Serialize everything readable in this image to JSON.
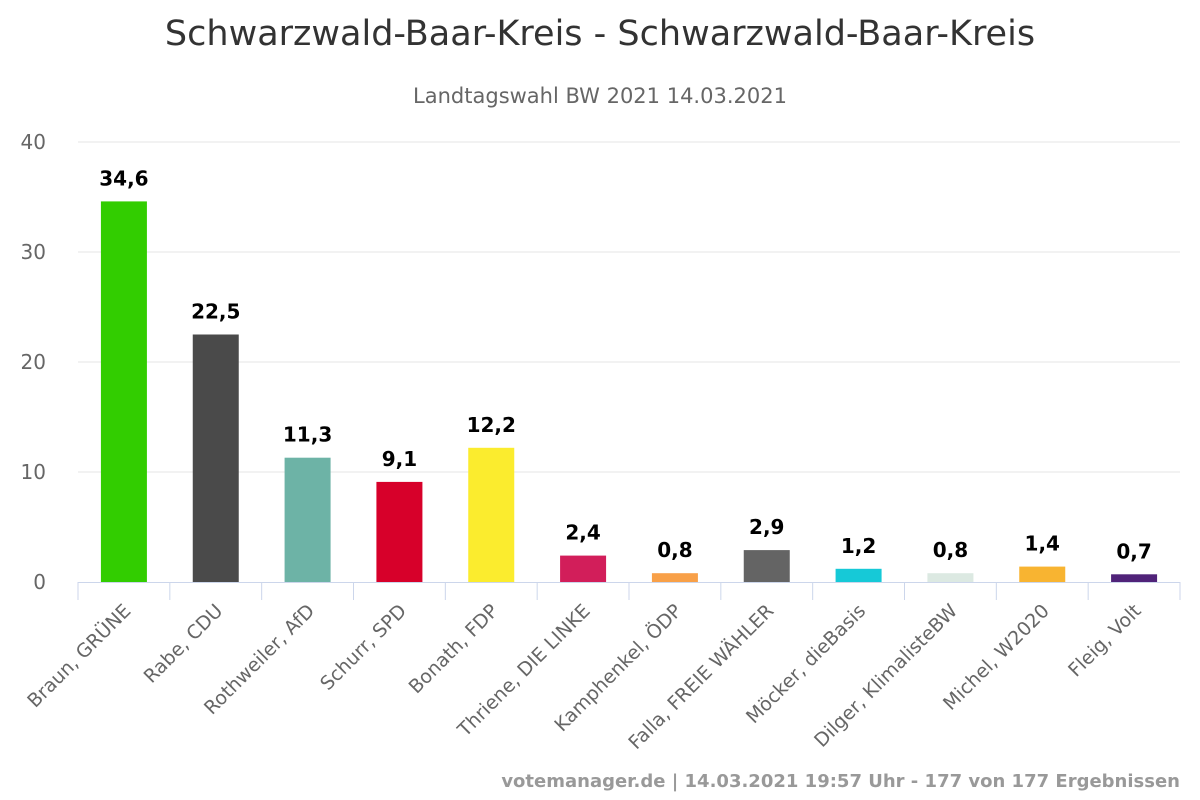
{
  "chart_data": {
    "type": "bar",
    "title": "Schwarzwald-Baar-Kreis - Schwarzwald-Baar-Kreis",
    "subtitle": "Landtagswahl BW 2021 14.03.2021",
    "xlabel": "",
    "ylabel": "",
    "ylim": [
      0,
      40
    ],
    "yticks": [
      0,
      10,
      20,
      30,
      40
    ],
    "grid": true,
    "legend": "none",
    "categories": [
      "Braun, GRÜNE",
      "Rabe, CDU",
      "Rothweiler, AfD",
      "Schurr, SPD",
      "Bonath, FDP",
      "Thriene, DIE LINKE",
      "Kamphenkel, ÖDP",
      "Falla, FREIE WÄHLER",
      "Möcker, dieBasis",
      "Dilger, KlimalisteBW",
      "Michel, W2020",
      "Fleig, Volt"
    ],
    "values": [
      34.6,
      22.5,
      11.3,
      9.1,
      12.2,
      2.4,
      0.8,
      2.9,
      1.2,
      0.8,
      1.4,
      0.7
    ],
    "data_labels": [
      "34,6",
      "22,5",
      "11,3",
      "9,1",
      "12,2",
      "2,4",
      "0,8",
      "2,9",
      "1,2",
      "0,8",
      "1,4",
      "0,7"
    ],
    "colors": [
      "#32cd00",
      "#4a4a4a",
      "#6db3a6",
      "#d7002a",
      "#fbec2e",
      "#d21e5a",
      "#f8a048",
      "#646464",
      "#16c9d7",
      "#dce9e2",
      "#f8b431",
      "#502379"
    ],
    "credits": "votemanager.de | 14.03.2021 19:57 Uhr - 177 von 177 Ergebnissen"
  }
}
